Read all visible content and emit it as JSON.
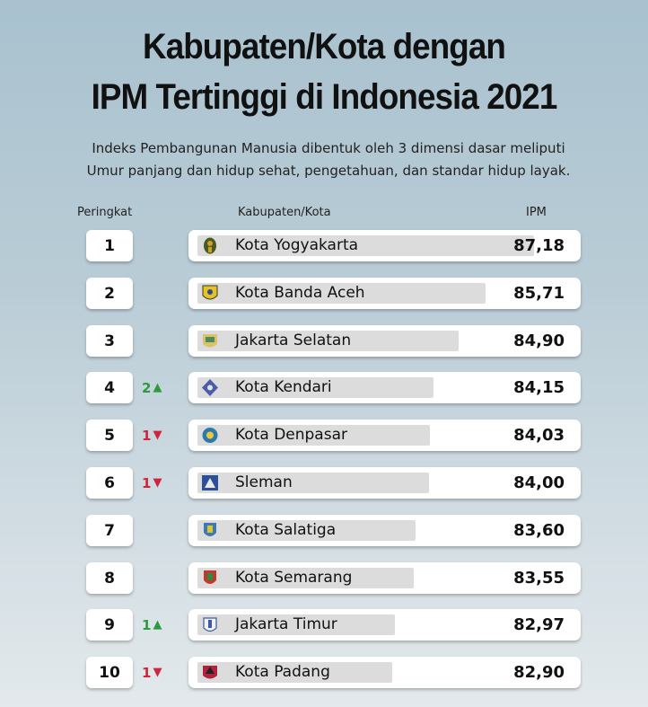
{
  "title_line1": "Kabupaten/Kota dengan",
  "title_line2": "IPM Tertinggi di Indonesia 2021",
  "subtitle_line1": "Indeks Pembangunan Manusia dibentuk oleh 3 dimensi dasar meliputi",
  "subtitle_line2": "Umur panjang dan hidup sehat, pengetahuan, dan standar hidup layak.",
  "colors": {
    "up": "#2e9a3e",
    "down": "#d0243a",
    "bar": "#dcdcdc"
  },
  "chart_data": {
    "type": "bar",
    "column_headers": {
      "rank": "Peringkat",
      "city": "Kabupaten/Kota",
      "value": "IPM"
    },
    "categories": [
      "Kota Yogyakarta",
      "Kota Banda Aceh",
      "Jakarta Selatan",
      "Kota Kendari",
      "Kota Denpasar",
      "Sleman",
      "Kota Salatiga",
      "Kota Semarang",
      "Jakarta Timur",
      "Kota Padang"
    ],
    "values": [
      87.18,
      85.71,
      84.9,
      84.15,
      84.03,
      84.0,
      83.6,
      83.55,
      82.97,
      82.9
    ],
    "value_labels": [
      "87,18",
      "85,71",
      "84,90",
      "84,15",
      "84,03",
      "84,00",
      "83,60",
      "83,55",
      "82,97",
      "82,90"
    ],
    "ranks": [
      "1",
      "2",
      "3",
      "4",
      "5",
      "6",
      "7",
      "8",
      "9",
      "10"
    ],
    "rank_changes": [
      null,
      null,
      null,
      {
        "amount": "2",
        "direction": "up"
      },
      {
        "amount": "1",
        "direction": "down"
      },
      {
        "amount": "1",
        "direction": "down"
      },
      null,
      null,
      {
        "amount": "1",
        "direction": "up"
      },
      {
        "amount": "1",
        "direction": "down"
      }
    ],
    "logo_icons": [
      "yogyakarta-emblem-icon",
      "banda-aceh-emblem-icon",
      "jakarta-selatan-emblem-icon",
      "kendari-emblem-icon",
      "denpasar-emblem-icon",
      "sleman-emblem-icon",
      "salatiga-emblem-icon",
      "semarang-emblem-icon",
      "jakarta-timur-emblem-icon",
      "padang-emblem-icon"
    ]
  }
}
